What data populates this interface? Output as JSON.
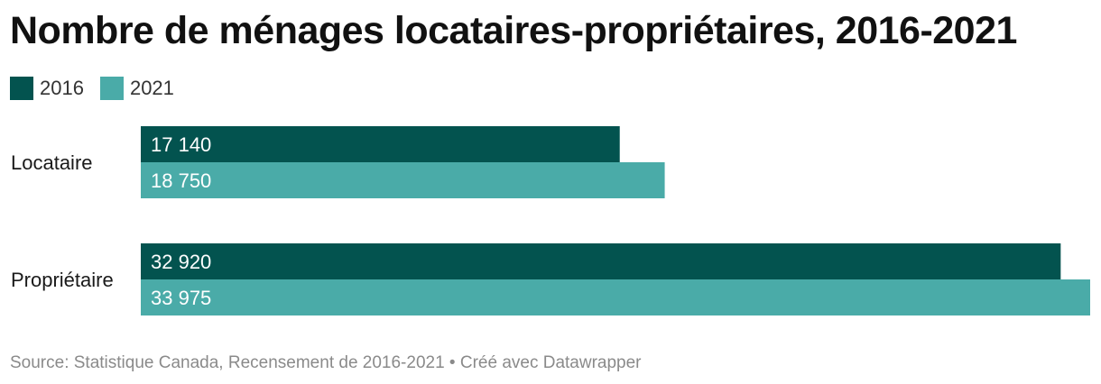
{
  "title": "Nombre de ménages locataires-propriétaires, 2016-2021",
  "footer": {
    "source": "Source: Statistique Canada, Recensement de 2016-2021 • Créé avec Datawrapper"
  },
  "colors": {
    "series_2016": "#03534f",
    "series_2021": "#4aaba8"
  },
  "chart_data": {
    "type": "bar",
    "orientation": "horizontal",
    "title": "Nombre de ménages locataires-propriétaires, 2016-2021",
    "categories": [
      "Locataire",
      "Propriétaire"
    ],
    "series": [
      {
        "name": "2016",
        "values": [
          17140,
          32920
        ],
        "labels": [
          "17 140",
          "32 920"
        ]
      },
      {
        "name": "2021",
        "values": [
          18750,
          33975
        ],
        "labels": [
          "18 750",
          "33 975"
        ]
      }
    ],
    "xlim": [
      0,
      33975
    ],
    "grid": false,
    "legend": "top-left"
  }
}
